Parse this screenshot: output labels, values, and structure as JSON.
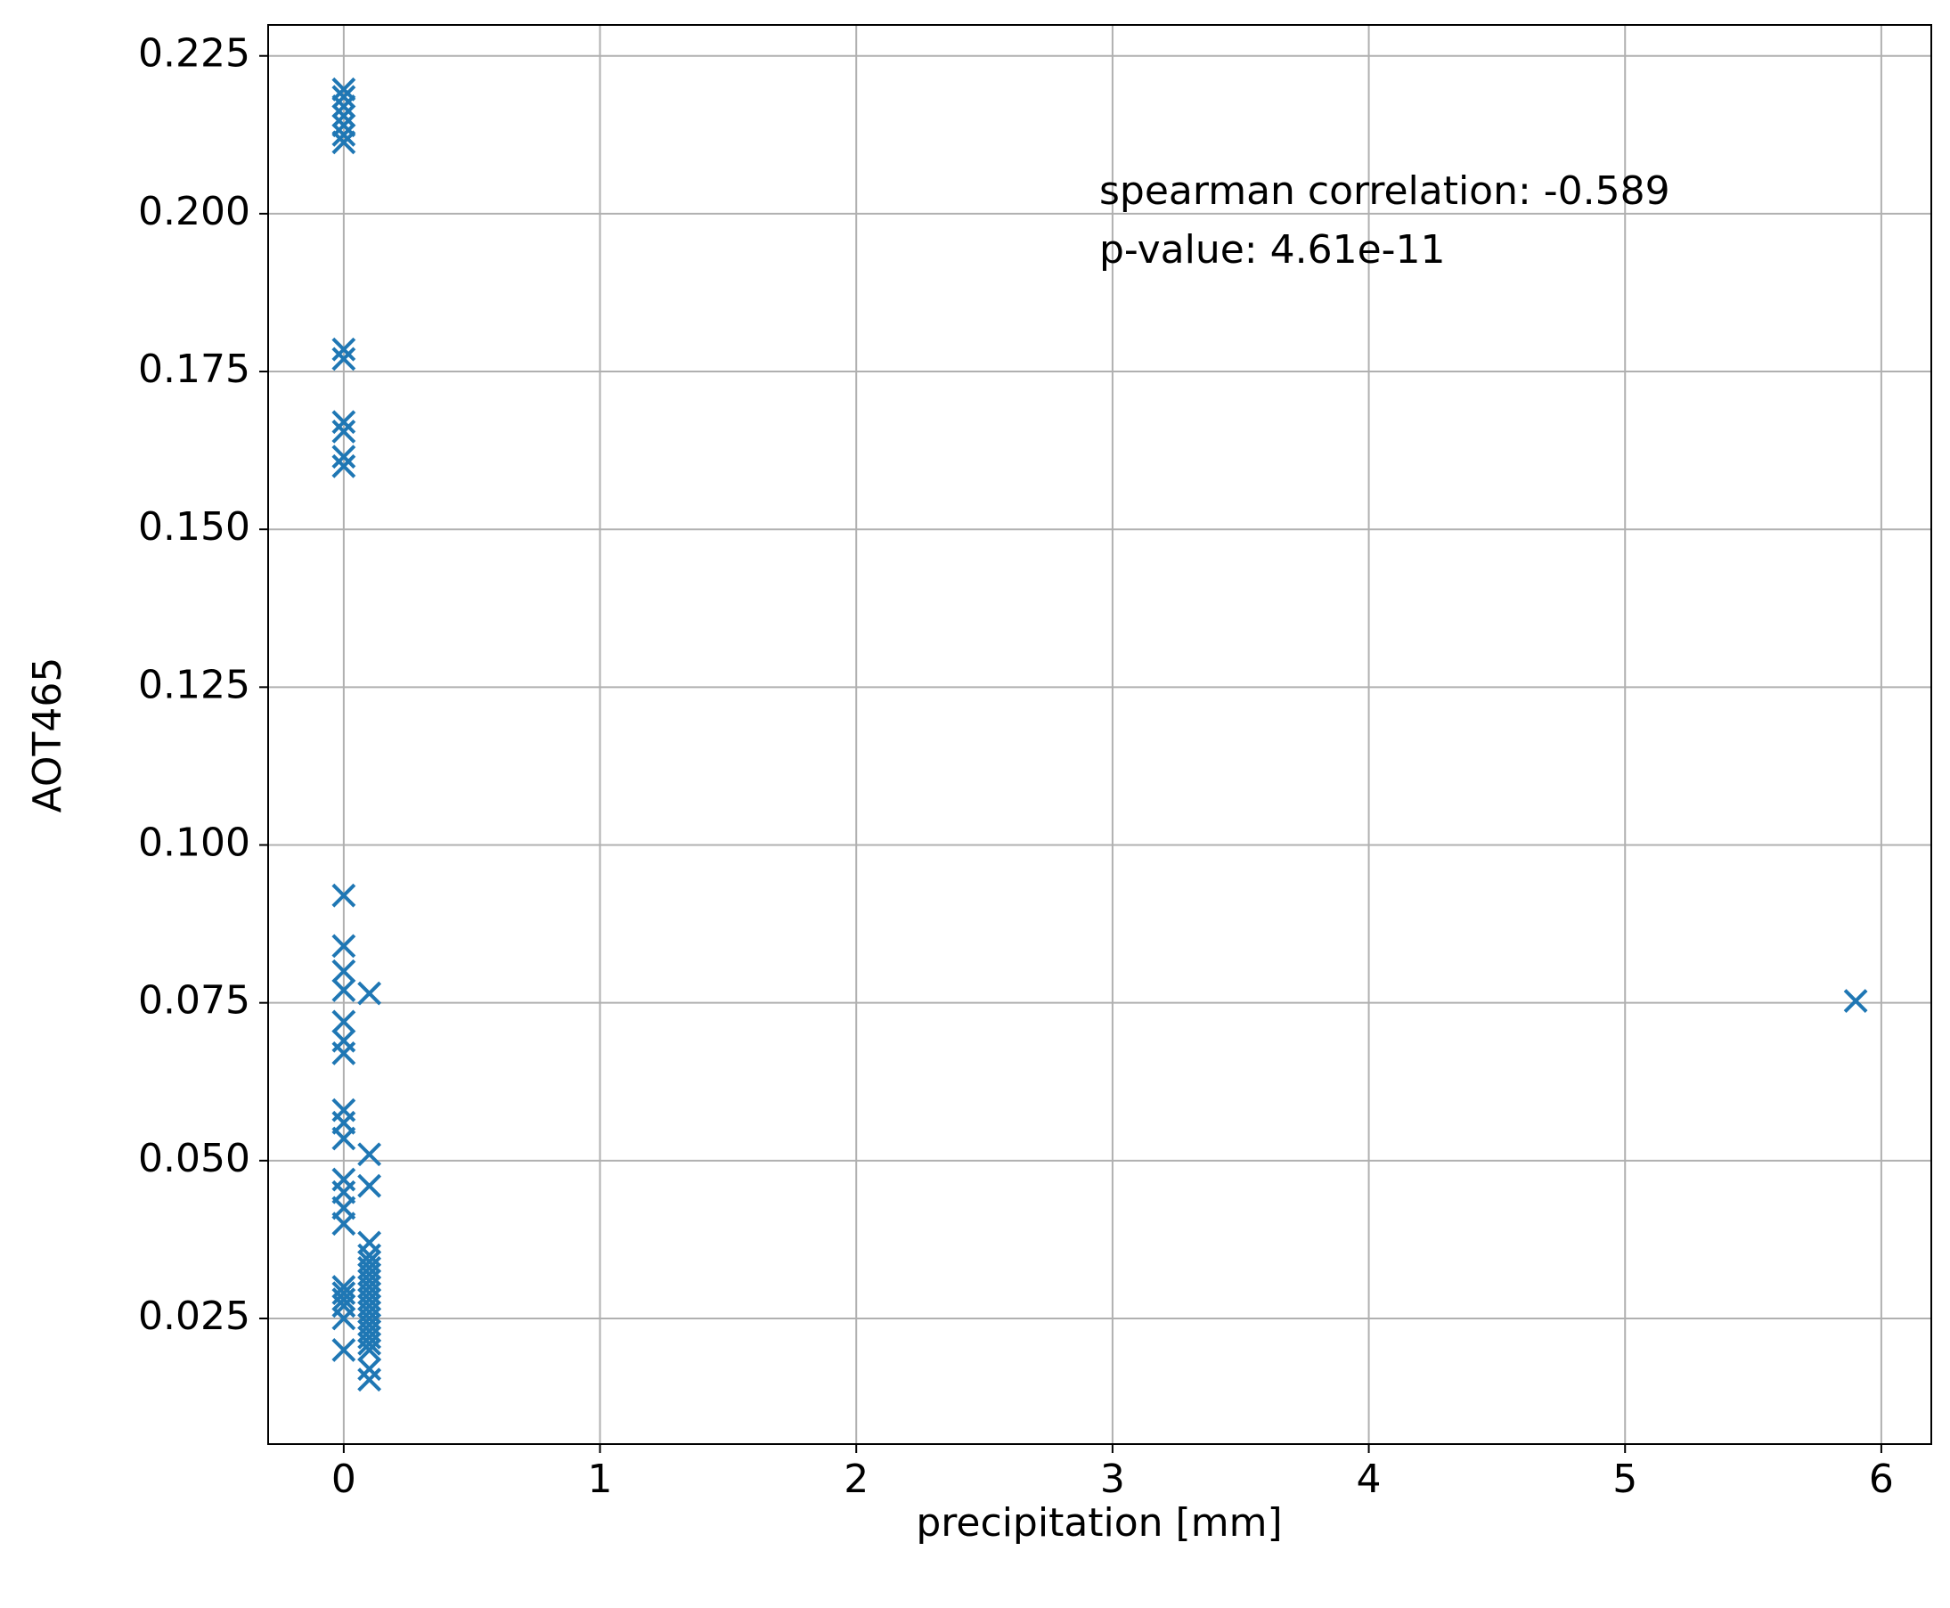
{
  "chart_data": {
    "type": "scatter",
    "x_label": "precipitation [mm]",
    "y_label": "AOT465",
    "annotations": [
      "spearman correlation: -0.589",
      "p-value: 4.61e-11"
    ],
    "color": "#1f77b4",
    "marker": "x",
    "grid": true,
    "xlim": [
      -0.295,
      6.195
    ],
    "xticks": [
      0,
      1,
      2,
      3,
      4,
      5,
      6
    ],
    "ylim": [
      0.0051,
      0.2299
    ],
    "yticks": [
      0.025,
      {
        "value": 0.05,
        "label": "0.050"
      },
      0.075,
      {
        "value": 0.1,
        "label": "0.100"
      },
      0.125,
      {
        "value": 0.15,
        "label": "0.150"
      },
      0.175,
      {
        "value": 0.2,
        "label": "0.200"
      },
      0.225
    ],
    "x": [
      0,
      0,
      0,
      0,
      0,
      0,
      0,
      0,
      0,
      0,
      0,
      0,
      0,
      0,
      0,
      0,
      0,
      0,
      0,
      0,
      0,
      0,
      0,
      0,
      0,
      0,
      0,
      0,
      0,
      0,
      0,
      0,
      0,
      0.1,
      0.1,
      0.1,
      0.1,
      0.1,
      0.1,
      0.1,
      0.1,
      0.1,
      0.1,
      0.1,
      0.1,
      0.1,
      0.1,
      0.1,
      0.1,
      0.1,
      0.1,
      0.1,
      0.1,
      0.1,
      0.1,
      5.9
    ],
    "values": [
      0.2197,
      0.2185,
      0.217,
      0.2155,
      0.214,
      0.2125,
      0.2113,
      0.1785,
      0.177,
      0.167,
      0.1655,
      0.1615,
      0.16,
      0.092,
      0.084,
      0.08,
      0.077,
      0.072,
      0.069,
      0.067,
      0.058,
      0.056,
      0.0535,
      0.047,
      0.045,
      0.0425,
      0.04,
      0.03,
      0.029,
      0.028,
      0.027,
      0.025,
      0.02,
      0.0765,
      0.051,
      0.046,
      0.037,
      0.035,
      0.034,
      0.033,
      0.032,
      0.031,
      0.03,
      0.029,
      0.028,
      0.027,
      0.026,
      0.025,
      0.024,
      0.023,
      0.022,
      0.021,
      0.02,
      0.017,
      0.0153,
      0.0753
    ]
  }
}
